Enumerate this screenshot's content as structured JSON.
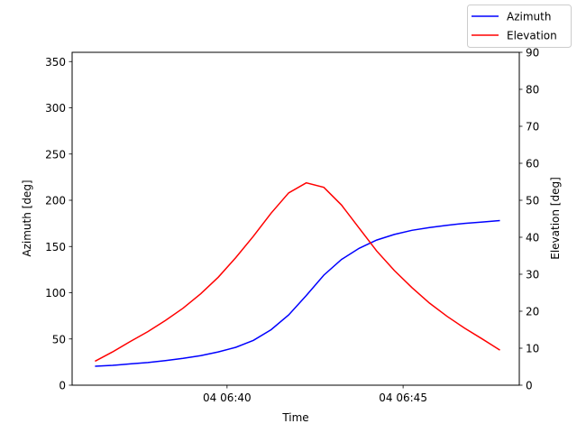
{
  "chart_data": {
    "type": "line",
    "xlabel": "Time",
    "ylabel_left": "Azimuth [deg]",
    "ylabel_right": "Elevation [deg]",
    "x_minutes_after_0640": [
      -3.75,
      -3.25,
      -2.75,
      -2.25,
      -1.75,
      -1.25,
      -0.75,
      -0.25,
      0.25,
      0.75,
      1.25,
      1.75,
      2.25,
      2.75,
      3.25,
      3.75,
      4.25,
      4.75,
      5.25,
      5.75,
      6.25,
      6.75,
      7.25,
      7.75
    ],
    "x_ticks": [
      {
        "value": 0,
        "label": "04 06:40"
      },
      {
        "value": 5,
        "label": "04 06:45"
      }
    ],
    "xlim": [
      -4.4,
      8.3
    ],
    "ylim_left": [
      0,
      360
    ],
    "yticks_left": [
      0,
      50,
      100,
      150,
      200,
      250,
      300,
      350
    ],
    "ylim_right": [
      0,
      90
    ],
    "yticks_right": [
      0,
      10,
      20,
      30,
      40,
      50,
      60,
      70,
      80,
      90
    ],
    "series": [
      {
        "name": "Azimuth",
        "axis": "left",
        "color": "#0000ff",
        "values": [
          20.5,
          21.5,
          23,
          24.5,
          26.5,
          29,
          32,
          36,
          41,
          48.5,
          60,
          76,
          97,
          119,
          136,
          148,
          157,
          163,
          167.5,
          170.5,
          173,
          175,
          176.5,
          178
        ]
      },
      {
        "name": "Elevation",
        "axis": "right",
        "color": "#ff0000",
        "values": [
          6.5,
          9,
          11.8,
          14.5,
          17.5,
          20.8,
          24.7,
          29.2,
          34.5,
          40.3,
          46.5,
          52,
          54.7,
          53.5,
          48.7,
          42.5,
          36.3,
          31,
          26.4,
          22.2,
          18.6,
          15.4,
          12.5,
          9.5
        ]
      }
    ],
    "legend_position": "top-right"
  }
}
